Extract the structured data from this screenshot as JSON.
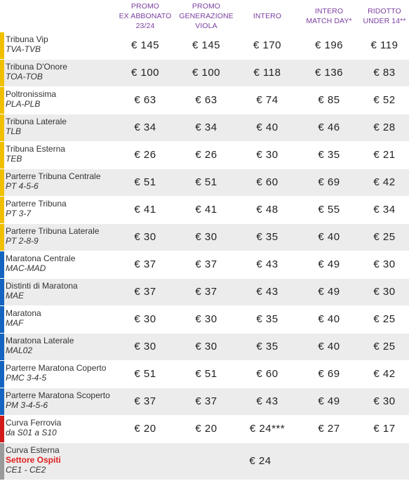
{
  "headers": [
    {
      "line1": "PROMO",
      "line2": "EX ABBONATO",
      "line3": "23/24"
    },
    {
      "line1": "PROMO",
      "line2": "GENERAZIONE",
      "line3": "VIOLA"
    },
    {
      "line1": "INTERO",
      "line2": "",
      "line3": ""
    },
    {
      "line1": "INTERO",
      "line2": "MATCH DAY*",
      "line3": ""
    },
    {
      "line1": "RIDOTTO",
      "line2": "UNDER 14**",
      "line3": ""
    }
  ],
  "colors": {
    "header_text": "#7b3fa0",
    "yellow": "#f0c000",
    "blue": "#1565c0",
    "red": "#d21a1a",
    "gray": "#9a9a9a",
    "ospiti": "#e02020"
  },
  "rows": [
    {
      "name": "Tribuna Vip",
      "code": "TVA-TVB",
      "bar": "yellow",
      "prices": [
        "€ 145",
        "€ 145",
        "€ 170",
        "€ 196",
        "€ 119"
      ]
    },
    {
      "name": "Tribuna D'Onore",
      "code": "TOA-TOB",
      "bar": "yellow",
      "prices": [
        "€ 100",
        "€ 100",
        "€ 118",
        "€ 136",
        "€ 83"
      ]
    },
    {
      "name": "Poltronissima",
      "code": "PLA-PLB",
      "bar": "yellow",
      "prices": [
        "€ 63",
        "€ 63",
        "€ 74",
        "€ 85",
        "€ 52"
      ]
    },
    {
      "name": "Tribuna Laterale",
      "code": "TLB",
      "bar": "yellow",
      "prices": [
        "€ 34",
        "€ 34",
        "€ 40",
        "€ 46",
        "€ 28"
      ]
    },
    {
      "name": "Tribuna Esterna",
      "code": "TEB",
      "bar": "yellow",
      "prices": [
        "€ 26",
        "€ 26",
        "€ 30",
        "€ 35",
        "€ 21"
      ]
    },
    {
      "name": "Parterre Tribuna Centrale",
      "code": "PT 4-5-6",
      "bar": "yellow",
      "prices": [
        "€ 51",
        "€ 51",
        "€ 60",
        "€ 69",
        "€ 42"
      ]
    },
    {
      "name": "Parterre Tribuna",
      "code": "PT 3-7",
      "bar": "yellow",
      "prices": [
        "€ 41",
        "€ 41",
        "€ 48",
        "€ 55",
        "€ 34"
      ]
    },
    {
      "name": "Parterre Tribuna Laterale",
      "code": "PT 2-8-9",
      "bar": "yellow",
      "prices": [
        "€ 30",
        "€ 30",
        "€ 35",
        "€ 40",
        "€ 25"
      ]
    },
    {
      "name": "Maratona Centrale",
      "code": "MAC-MAD",
      "bar": "blue",
      "prices": [
        "€ 37",
        "€ 37",
        "€ 43",
        "€ 49",
        "€ 30"
      ]
    },
    {
      "name": "Distinti di Maratona",
      "code": "MAE",
      "bar": "blue",
      "prices": [
        "€ 37",
        "€ 37",
        "€ 43",
        "€ 49",
        "€ 30"
      ]
    },
    {
      "name": "Maratona",
      "code": "MAF",
      "bar": "blue",
      "prices": [
        "€ 30",
        "€ 30",
        "€ 35",
        "€ 40",
        "€ 25"
      ]
    },
    {
      "name": "Maratona Laterale",
      "code": "MAL02",
      "bar": "blue",
      "prices": [
        "€ 30",
        "€ 30",
        "€ 35",
        "€ 40",
        "€ 25"
      ]
    },
    {
      "name": "Parterre Maratona Coperto",
      "code": "PMC 3-4-5",
      "bar": "blue",
      "prices": [
        "€ 51",
        "€ 51",
        "€ 60",
        "€ 69",
        "€ 42"
      ]
    },
    {
      "name": "Parterre Maratona Scoperto",
      "code": "PM 3-4-5-6",
      "bar": "blue",
      "prices": [
        "€ 37",
        "€ 37",
        "€ 43",
        "€ 49",
        "€ 30"
      ]
    },
    {
      "name": "Curva Ferrovia",
      "code": "da S01 a S10",
      "bar": "red",
      "prices": [
        "€ 20",
        "€ 20",
        "€ 24***",
        "€ 27",
        "€ 17"
      ]
    },
    {
      "name": "Curva Esterna",
      "sub": "Settore Ospiti",
      "code": "CE1 - CE2",
      "bar": "gray",
      "tall": true,
      "single_price": "€ 24"
    }
  ]
}
